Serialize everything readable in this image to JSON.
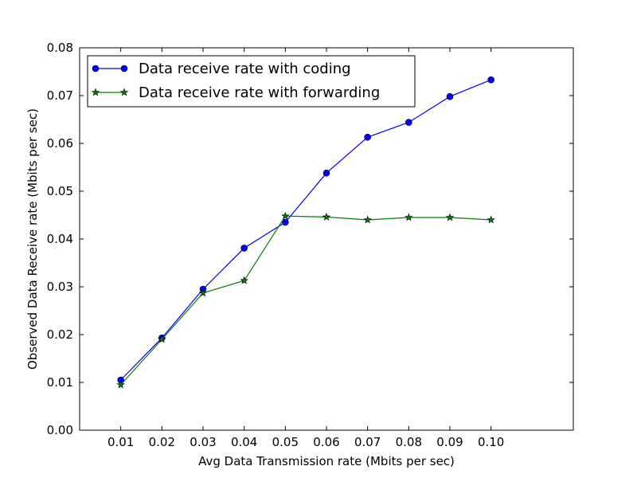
{
  "chart_data": {
    "type": "line",
    "xlabel": "Avg Data Transmission rate (Mbits per sec)",
    "ylabel": "Observed Data Receive rate (Mbits per sec)",
    "x": [
      0.01,
      0.02,
      0.03,
      0.04,
      0.05,
      0.06,
      0.07,
      0.08,
      0.09,
      0.1
    ],
    "x_tick_labels": [
      "0.01",
      "0.02",
      "0.03",
      "0.04",
      "0.05",
      "0.06",
      "0.07",
      "0.08",
      "0.09",
      "0.10"
    ],
    "xlim": [
      0.0,
      0.12
    ],
    "ylim": [
      0.0,
      0.08
    ],
    "y_ticks": [
      0.0,
      0.01,
      0.02,
      0.03,
      0.04,
      0.05,
      0.06,
      0.07,
      0.08
    ],
    "y_tick_labels": [
      "0.00",
      "0.01",
      "0.02",
      "0.03",
      "0.04",
      "0.05",
      "0.06",
      "0.07",
      "0.08"
    ],
    "grid": false,
    "legend_position": "top-left",
    "series": [
      {
        "name": "Data receive rate with coding",
        "color": "#0000ff",
        "marker": "circle",
        "values": [
          0.0105,
          0.0193,
          0.0295,
          0.0381,
          0.0435,
          0.0538,
          0.0613,
          0.0644,
          0.0698,
          0.0733
        ]
      },
      {
        "name": "Data receive rate with forwarding",
        "color": "#008000",
        "marker": "star",
        "values": [
          0.0095,
          0.019,
          0.0287,
          0.0313,
          0.0448,
          0.0446,
          0.044,
          0.0445,
          0.0445,
          0.044
        ]
      }
    ]
  }
}
